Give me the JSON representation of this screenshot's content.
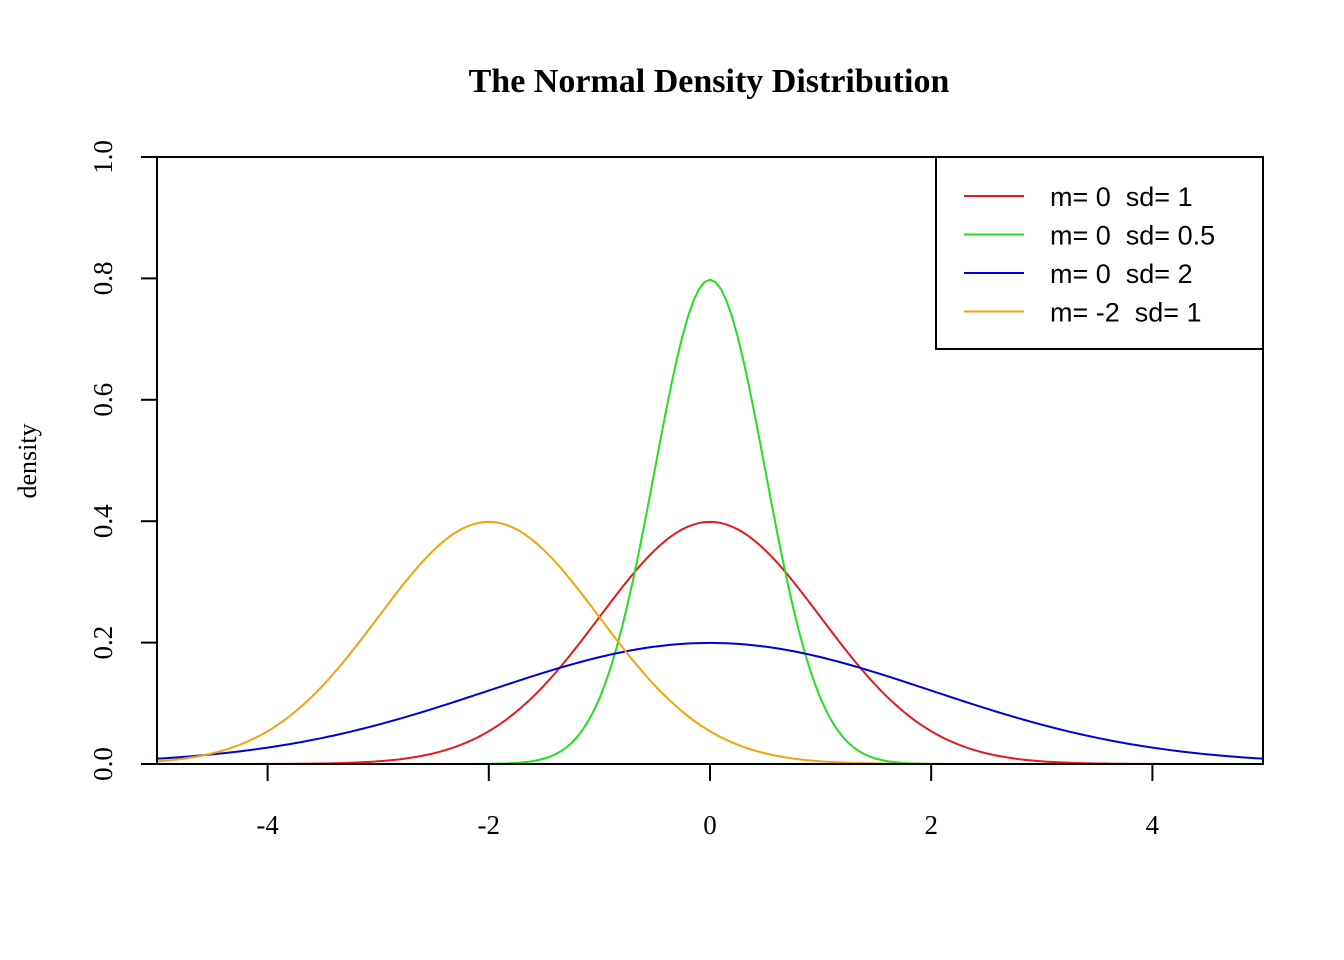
{
  "chart_data": {
    "type": "line",
    "title": "The Normal Density Distribution",
    "xlabel": "",
    "ylabel": "density",
    "xlim": [
      -5,
      5
    ],
    "ylim": [
      0,
      1
    ],
    "x_ticks": [
      -4,
      -2,
      0,
      2,
      4
    ],
    "x_tick_labels": [
      "-4",
      "-2",
      "0",
      "2",
      "4"
    ],
    "y_ticks": [
      0,
      0.2,
      0.4,
      0.6,
      0.8,
      1
    ],
    "y_tick_labels": [
      "0.0",
      "0.2",
      "0.4",
      "0.6",
      "0.8",
      "1.0"
    ],
    "grid": false,
    "legend_position": "top-right",
    "series": [
      {
        "name": "m= 0  sd= 1",
        "mean": 0,
        "sd": 1,
        "color": "#e41a1c"
      },
      {
        "name": "m= 0  sd= 0.5",
        "mean": 0,
        "sd": 0.5,
        "color": "#22e01c"
      },
      {
        "name": "m= 0  sd= 2",
        "mean": 0,
        "sd": 2,
        "color": "#0000dd"
      },
      {
        "name": "m= -2  sd= 1",
        "mean": -2,
        "sd": 1,
        "color": "#f5a20a"
      }
    ]
  }
}
